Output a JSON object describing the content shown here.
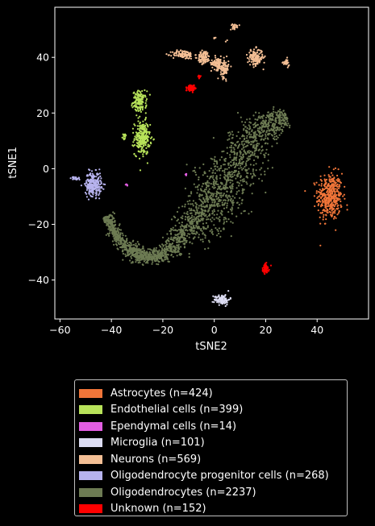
{
  "chart_data": {
    "type": "scatter",
    "title": "",
    "xlabel": "tSNE2",
    "ylabel": "tSNE1",
    "xlim": [
      -62,
      60
    ],
    "ylim": [
      -54,
      58
    ],
    "xticks": [
      -60,
      -40,
      -20,
      0,
      20,
      40
    ],
    "yticks": [
      -40,
      -20,
      0,
      20,
      40
    ],
    "grid": false,
    "legend_position": "bottom-outside",
    "series": [
      {
        "name": "Astrocytes (n=424)",
        "color": "#f07539",
        "count": 424,
        "clusters": [
          {
            "center": [
              45,
              -10
            ],
            "spread": [
              4,
              7
            ]
          }
        ]
      },
      {
        "name": "Endothelial cells (n=399)",
        "color": "#b8e35a",
        "count": 399,
        "clusters": [
          {
            "center": [
              -29,
              24
            ],
            "spread": [
              2.2,
              3.2
            ]
          },
          {
            "center": [
              -28,
              11
            ],
            "spread": [
              2.5,
              5
            ]
          },
          {
            "center": [
              -35,
              11.5
            ],
            "spread": [
              0.6,
              1.2
            ]
          }
        ]
      },
      {
        "name": "Ependymal cells (n=14)",
        "color": "#e25ee2",
        "count": 14,
        "clusters": [
          {
            "center": [
              -34,
              -6
            ],
            "spread": [
              0.3,
              0.4
            ]
          },
          {
            "center": [
              -11,
              -2
            ],
            "spread": [
              0.3,
              0.4
            ]
          }
        ]
      },
      {
        "name": "Microglia (n=101)",
        "color": "#dcdcf2",
        "count": 101,
        "clusters": [
          {
            "center": [
              3,
              -47
            ],
            "spread": [
              2.5,
              1.5
            ]
          }
        ]
      },
      {
        "name": "Neurons (n=569)",
        "color": "#f4bf95",
        "count": 569,
        "clusters": [
          {
            "center": [
              -12,
              41
            ],
            "spread": [
              3.5,
              1.3
            ]
          },
          {
            "center": [
              -4,
              40
            ],
            "spread": [
              2,
              2
            ]
          },
          {
            "center": [
              1,
              38
            ],
            "spread": [
              1.8,
              2
            ]
          },
          {
            "center": [
              4,
              36
            ],
            "spread": [
              1.3,
              2.8
            ]
          },
          {
            "center": [
              8,
              51
            ],
            "spread": [
              1.5,
              0.7
            ]
          },
          {
            "center": [
              16,
              40
            ],
            "spread": [
              2.5,
              2.5
            ]
          },
          {
            "center": [
              28,
              38
            ],
            "spread": [
              1,
              1.2
            ]
          },
          {
            "center": [
              0,
              47
            ],
            "spread": [
              0.4,
              0.4
            ]
          },
          {
            "center": [
              5,
              46
            ],
            "spread": [
              0.3,
              0.3
            ]
          }
        ]
      },
      {
        "name": "Oligodendrocyte progenitor cells (n=268)",
        "color": "#b7b3ee",
        "count": 268,
        "clusters": [
          {
            "center": [
              -47,
              -5.5
            ],
            "spread": [
              2.6,
              3.5
            ]
          },
          {
            "center": [
              -54,
              -3.5
            ],
            "spread": [
              1.5,
              0.5
            ]
          }
        ]
      },
      {
        "name": "Oligodendrocytes (n=2237)",
        "color": "#6d7b53",
        "count": 2237,
        "clusters": [
          {
            "path": [
              [
                -42,
                -17
              ],
              [
                -38,
                -24
              ],
              [
                -32,
                -30
              ],
              [
                -25,
                -32
              ],
              [
                -18,
                -30
              ],
              [
                -12,
                -24
              ],
              [
                -6,
                -18
              ],
              [
                0,
                -12
              ],
              [
                4,
                -6
              ],
              [
                8,
                2
              ],
              [
                14,
                10
              ],
              [
                22,
                16
              ],
              [
                28,
                19
              ]
            ],
            "width": [
              2,
              2,
              2.5,
              2,
              3,
              5,
              7,
              9,
              10,
              9,
              7,
              5,
              3
            ]
          }
        ]
      },
      {
        "name": "Unknown (n=152)",
        "color": "#ff0000",
        "count": 152,
        "clusters": [
          {
            "center": [
              -9,
              29
            ],
            "spread": [
              1.4,
              1.2
            ]
          },
          {
            "center": [
              20,
              -36
            ],
            "spread": [
              1,
              1.4
            ]
          },
          {
            "center": [
              -6,
              33
            ],
            "spread": [
              0.5,
              0.5
            ]
          }
        ]
      }
    ]
  }
}
